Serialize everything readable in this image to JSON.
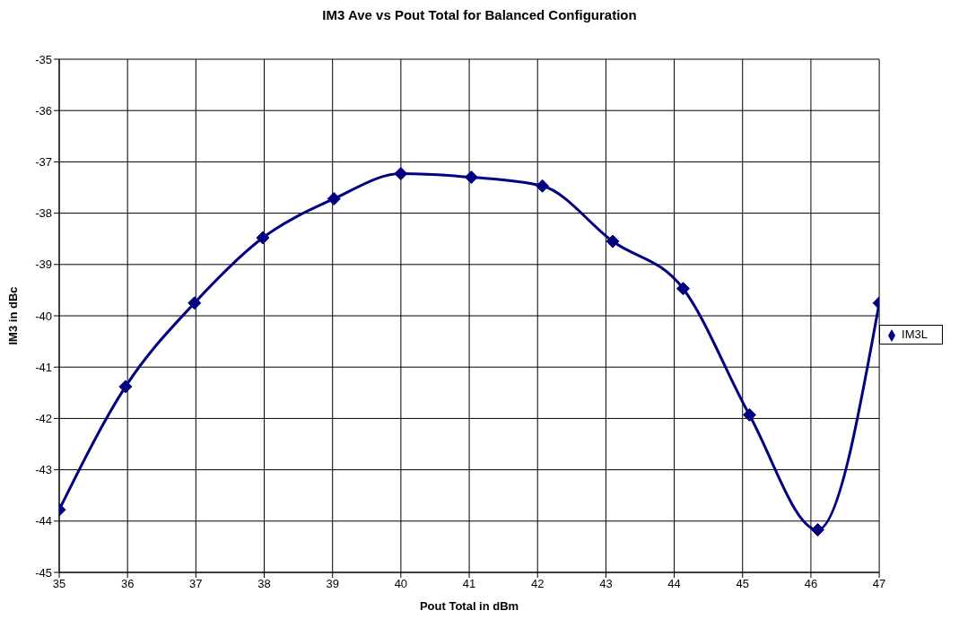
{
  "chart_data": {
    "type": "line",
    "title": "IM3 Ave vs Pout Total for Balanced Configuration",
    "xlabel": "Pout Total in dBm",
    "ylabel": "IM3 in dBc",
    "x": [
      35,
      35.97,
      36.98,
      37.98,
      39.02,
      40.0,
      41.03,
      42.07,
      43.1,
      44.13,
      45.1,
      46.1,
      47.0
    ],
    "series": [
      {
        "name": "IM3L",
        "color": "#000080",
        "values": [
          -43.78,
          -41.38,
          -39.75,
          -38.48,
          -37.72,
          -37.23,
          -37.3,
          -37.47,
          -38.55,
          -39.47,
          -41.93,
          -44.17,
          -39.75
        ]
      }
    ],
    "xlim": [
      35,
      47
    ],
    "xticks": [
      35,
      36,
      37,
      38,
      39,
      40,
      41,
      42,
      43,
      44,
      45,
      46,
      47
    ],
    "ylim": [
      -45,
      -35
    ],
    "yticks": [
      -45,
      -44,
      -43,
      -42,
      -41,
      -40,
      -39,
      -38,
      -37,
      -36,
      -35
    ],
    "grid": true,
    "legend": "right",
    "marker": "diamond",
    "line_style": "solid"
  }
}
